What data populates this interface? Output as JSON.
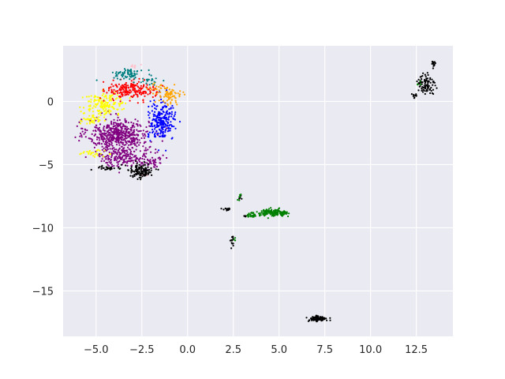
{
  "chart_data": {
    "type": "scatter",
    "title": "",
    "xlabel": "",
    "ylabel": "",
    "xlim": [
      -6.8,
      14.5
    ],
    "ylim": [
      -18.6,
      4.4
    ],
    "grid": true,
    "background": "#eaeaf2",
    "grid_color": "#ffffff",
    "x_ticks": [
      {
        "value": -5.0,
        "label": "−5.0"
      },
      {
        "value": -2.5,
        "label": "−2.5"
      },
      {
        "value": 0.0,
        "label": "0.0"
      },
      {
        "value": 2.5,
        "label": "2.5"
      },
      {
        "value": 5.0,
        "label": "5.0"
      },
      {
        "value": 7.5,
        "label": "7.5"
      },
      {
        "value": 10.0,
        "label": "10.0"
      },
      {
        "value": 12.5,
        "label": "12.5"
      }
    ],
    "y_ticks": [
      {
        "value": 0,
        "label": "0"
      },
      {
        "value": -5,
        "label": "−5"
      },
      {
        "value": -10,
        "label": "−10"
      },
      {
        "value": -15,
        "label": "−15"
      }
    ],
    "series": [
      {
        "color": "#800080",
        "clusters": [
          {
            "cx": -3.8,
            "cy": -2.6,
            "sx": 1.1,
            "sy": 0.8,
            "n": 520
          },
          {
            "cx": -3.6,
            "cy": -4.4,
            "sx": 0.9,
            "sy": 0.5,
            "n": 180
          },
          {
            "cx": -2.0,
            "cy": -4.6,
            "sx": 0.4,
            "sy": 0.6,
            "n": 60
          }
        ]
      },
      {
        "color": "#ffff00",
        "clusters": [
          {
            "cx": -4.5,
            "cy": -0.2,
            "sx": 0.8,
            "sy": 0.6,
            "n": 160
          },
          {
            "cx": -5.3,
            "cy": -1.5,
            "sx": 0.4,
            "sy": 0.3,
            "n": 40
          },
          {
            "cx": -5.2,
            "cy": -4.1,
            "sx": 0.45,
            "sy": 0.15,
            "n": 30
          }
        ]
      },
      {
        "color": "#ff0000",
        "clusters": [
          {
            "cx": -3.1,
            "cy": 0.9,
            "sx": 0.9,
            "sy": 0.5,
            "n": 200
          }
        ]
      },
      {
        "color": "#0000ff",
        "clusters": [
          {
            "cx": -1.4,
            "cy": -1.6,
            "sx": 0.5,
            "sy": 1.0,
            "n": 240
          }
        ]
      },
      {
        "color": "#008080",
        "clusters": [
          {
            "cx": -3.2,
            "cy": 2.2,
            "sx": 0.6,
            "sy": 0.25,
            "n": 70
          },
          {
            "cx": -2.0,
            "cy": 1.6,
            "sx": 0.3,
            "sy": 0.15,
            "n": 20
          }
        ]
      },
      {
        "color": "#ffa500",
        "clusters": [
          {
            "cx": -1.0,
            "cy": 0.4,
            "sx": 0.45,
            "sy": 0.45,
            "n": 70
          },
          {
            "cx": -1.6,
            "cy": 1.1,
            "sx": 0.3,
            "sy": 0.3,
            "n": 20
          }
        ]
      },
      {
        "color": "#ffc0cb",
        "clusters": [
          {
            "cx": -2.9,
            "cy": 2.8,
            "sx": 0.15,
            "sy": 0.1,
            "n": 8
          },
          {
            "cx": -2.3,
            "cy": -5.8,
            "sx": 0.15,
            "sy": 0.1,
            "n": 5
          }
        ]
      },
      {
        "color": "#000000",
        "clusters": [
          {
            "cx": -2.6,
            "cy": -5.5,
            "sx": 0.5,
            "sy": 0.4,
            "n": 120
          },
          {
            "cx": -4.3,
            "cy": -5.3,
            "sx": 0.4,
            "sy": 0.15,
            "n": 30
          },
          {
            "cx": 13.0,
            "cy": 1.3,
            "sx": 0.35,
            "sy": 0.6,
            "n": 90
          },
          {
            "cx": 13.45,
            "cy": 2.9,
            "sx": 0.08,
            "sy": 0.35,
            "n": 15
          },
          {
            "cx": 12.4,
            "cy": 0.4,
            "sx": 0.15,
            "sy": 0.15,
            "n": 10
          },
          {
            "cx": 7.1,
            "cy": -17.2,
            "sx": 0.35,
            "sy": 0.15,
            "n": 90
          },
          {
            "cx": 2.15,
            "cy": -8.55,
            "sx": 0.15,
            "sy": 0.06,
            "n": 14
          },
          {
            "cx": 2.45,
            "cy": -11.1,
            "sx": 0.06,
            "sy": 0.3,
            "n": 16
          },
          {
            "cx": 2.9,
            "cy": -7.5,
            "sx": 0.05,
            "sy": 0.2,
            "n": 6
          },
          {
            "cx": 3.1,
            "cy": -9.1,
            "sx": 0.1,
            "sy": 0.05,
            "n": 5
          }
        ]
      },
      {
        "color": "#008000",
        "clusters": [
          {
            "cx": 4.6,
            "cy": -8.8,
            "sx": 0.55,
            "sy": 0.18,
            "n": 130
          },
          {
            "cx": 3.5,
            "cy": -9.0,
            "sx": 0.25,
            "sy": 0.12,
            "n": 25
          },
          {
            "cx": 5.2,
            "cy": -8.9,
            "sx": 0.2,
            "sy": 0.1,
            "n": 30
          },
          {
            "cx": 2.85,
            "cy": -7.6,
            "sx": 0.06,
            "sy": 0.2,
            "n": 6
          },
          {
            "cx": 2.6,
            "cy": -10.9,
            "sx": 0.05,
            "sy": 0.1,
            "n": 3
          },
          {
            "cx": 12.7,
            "cy": 1.5,
            "sx": 0.1,
            "sy": 0.2,
            "n": 4
          }
        ]
      }
    ]
  }
}
